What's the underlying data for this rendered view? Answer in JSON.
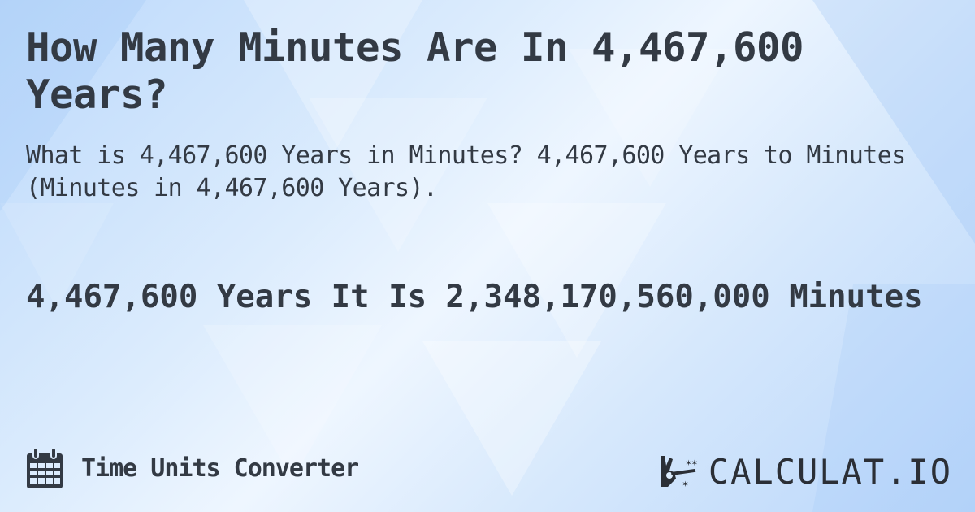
{
  "title": "How Many Minutes Are In 4,467,600 Years?",
  "subtitle": "What is 4,467,600 Years in Minutes? 4,467,600 Years to Minutes (Minutes in 4,467,600 Years).",
  "result": "4,467,600 Years It Is 2,348,170,560,000 Minutes",
  "footer": {
    "category": "Time Units Converter",
    "icon": "calendar-icon"
  },
  "logo": {
    "text": "CALCULAT.IO",
    "icon": "magic-hand-icon"
  },
  "colors": {
    "text": "#333a44",
    "background": "#cfe4fc"
  }
}
